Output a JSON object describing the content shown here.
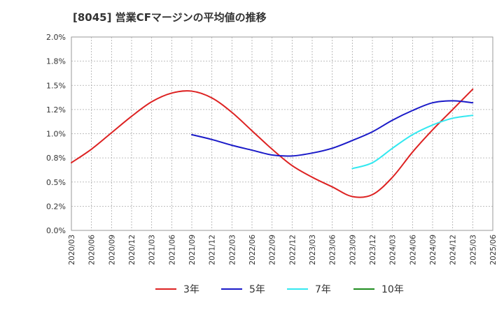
{
  "chart_data": {
    "type": "line",
    "title": "[8045]  営業CFマージンの平均値の推移",
    "xlabel": "",
    "ylabel": "",
    "ylim": [
      0,
      0.02
    ],
    "y_ticks": [
      "0.0%",
      "0.2%",
      "0.5%",
      "0.8%",
      "1.0%",
      "1.2%",
      "1.5%",
      "1.8%",
      "2.0%"
    ],
    "x_ticks": [
      "2020/03",
      "2020/06",
      "2020/09",
      "2020/12",
      "2021/03",
      "2021/06",
      "2021/09",
      "2021/12",
      "2022/03",
      "2022/06",
      "2022/09",
      "2022/12",
      "2023/03",
      "2023/06",
      "2023/09",
      "2023/12",
      "2024/03",
      "2024/06",
      "2024/09",
      "2024/12",
      "2025/03",
      "2025/06"
    ],
    "grid": true,
    "legend_position": "bottom",
    "series": [
      {
        "name": "3年",
        "color": "#dd2222",
        "values": [
          0.007,
          0.0084,
          0.0101,
          0.0118,
          0.0133,
          0.0142,
          0.0144,
          0.0137,
          0.0122,
          0.0103,
          0.0084,
          0.0067,
          0.0055,
          0.0045,
          0.0035,
          0.0037,
          0.0055,
          0.0081,
          0.0104,
          0.0125,
          0.0146,
          null
        ]
      },
      {
        "name": "5年",
        "color": "#1a1ac8",
        "values": [
          null,
          null,
          null,
          null,
          null,
          null,
          0.0099,
          0.0094,
          0.0088,
          0.0083,
          0.0078,
          0.0077,
          0.008,
          0.0085,
          0.0093,
          0.0102,
          0.0114,
          0.0124,
          0.0132,
          0.0134,
          0.0132,
          null
        ]
      },
      {
        "name": "7年",
        "color": "#33e8f0",
        "values": [
          null,
          null,
          null,
          null,
          null,
          null,
          null,
          null,
          null,
          null,
          null,
          null,
          null,
          null,
          0.0064,
          0.007,
          0.0085,
          0.0099,
          0.0109,
          0.0116,
          0.0119,
          null
        ]
      },
      {
        "name": "10年",
        "color": "#1e8c1e",
        "values": [
          null,
          null,
          null,
          null,
          null,
          null,
          null,
          null,
          null,
          null,
          null,
          null,
          null,
          null,
          null,
          null,
          null,
          null,
          null,
          null,
          null,
          null
        ]
      }
    ]
  }
}
